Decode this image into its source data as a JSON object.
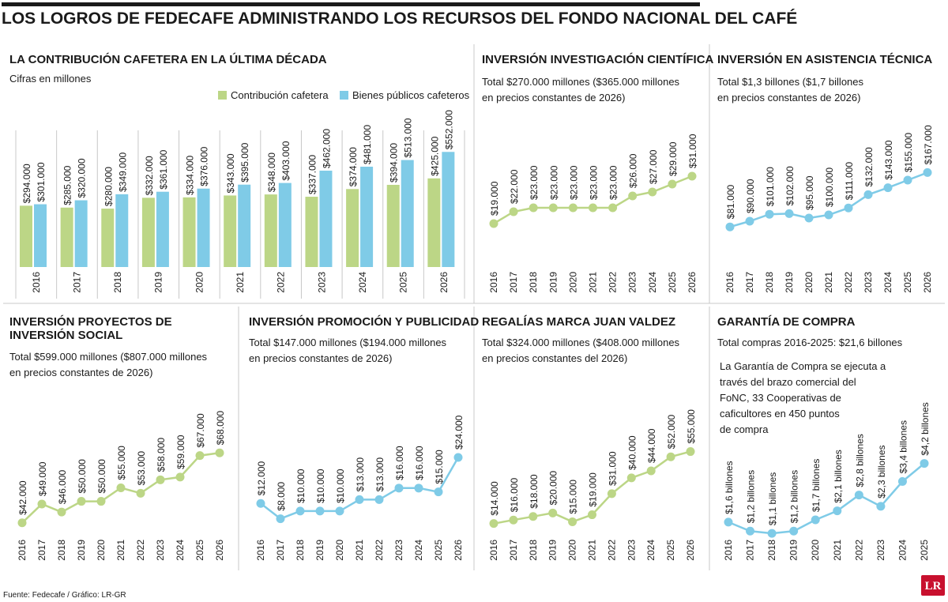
{
  "title": "LOS LOGROS DE FEDECAFE ADMINISTRANDO LOS RECURSOS DEL FONDO NACIONAL DEL CAFÉ",
  "footer": "Fuente: Fedecafe / Gráfico: LR-GR",
  "logo": "LR",
  "colors": {
    "green": "#bcd686",
    "blue": "#7fcbe7",
    "dark": "#1a1a1a",
    "rule": "#c8c8c8",
    "logo": "#c8102e"
  },
  "chart_data": [
    {
      "id": "contribucion",
      "type": "bar",
      "title": "LA CONTRIBUCIÓN CAFETERA EN LA ÚLTIMA DÉCADA",
      "subtitle": "Cifras en millones",
      "categories": [
        "2016",
        "2017",
        "2018",
        "2019",
        "2020",
        "2021",
        "2022",
        "2023",
        "2024",
        "2025",
        "2026"
      ],
      "series": [
        {
          "name": "Contribución cafetera",
          "color": "#bcd686",
          "values": [
            294000,
            285000,
            280000,
            332000,
            334000,
            343000,
            348000,
            337000,
            374000,
            394000,
            425000
          ],
          "labels": [
            "$294.000",
            "$285.000",
            "$280.000",
            "$332.000",
            "$334.000",
            "$343.000",
            "$348.000",
            "$337.000",
            "$374.000",
            "$394.000",
            "$425.000"
          ]
        },
        {
          "name": "Bienes públicos cafeteros",
          "color": "#7fcbe7",
          "values": [
            301000,
            320000,
            349000,
            361000,
            376000,
            395000,
            403000,
            462000,
            481000,
            513000,
            552000
          ],
          "labels": [
            "$301.000",
            "$320.000",
            "$349.000",
            "$361.000",
            "$376.000",
            "$395.000",
            "$403.000",
            "$462.000",
            "$481.000",
            "$513.000",
            "$552.000"
          ]
        }
      ],
      "ylim": [
        0,
        750000
      ]
    },
    {
      "id": "investigacion",
      "type": "line",
      "title": "INVERSIÓN INVESTIGACIÓN CIENTÍFICA",
      "subtitle": [
        "Total $270.000 millones ($365.000 millones",
        "en precios constantes de 2026)"
      ],
      "x": [
        "2016",
        "2017",
        "2018",
        "2019",
        "2020",
        "2021",
        "2022",
        "2023",
        "2024",
        "2025",
        "2026"
      ],
      "values": [
        19000,
        22000,
        23000,
        23000,
        23000,
        23000,
        23000,
        26000,
        27000,
        29000,
        31000
      ],
      "labels": [
        "$19.000",
        "$22.000",
        "$23.000",
        "$23.000",
        "$23.000",
        "$23.000",
        "$23.000",
        "$26.000",
        "$27.000",
        "$29.000",
        "$31.000"
      ],
      "color": "#bcd686",
      "ylim": [
        14000,
        46000
      ]
    },
    {
      "id": "asistencia",
      "type": "line",
      "title": "INVERSIÓN EN ASISTENCIA TÉCNICA",
      "subtitle": [
        "Total $1,3 billones ($1,7 billones",
        "en precios constantes de 2026)"
      ],
      "x": [
        "2016",
        "2017",
        "2018",
        "2019",
        "2020",
        "2021",
        "2022",
        "2023",
        "2024",
        "2025",
        "2026"
      ],
      "values": [
        81000,
        90000,
        101000,
        102000,
        95000,
        100000,
        111000,
        132000,
        143000,
        155000,
        167000
      ],
      "labels": [
        "$81.000",
        "$90.000",
        "$101.000",
        "$102.000",
        "$95.000",
        "$100.000",
        "$111.000",
        "$132.000",
        "$143.000",
        "$155.000",
        "$167.000"
      ],
      "color": "#7fcbe7",
      "ylim": [
        55000,
        255000
      ]
    },
    {
      "id": "social",
      "type": "line",
      "title": [
        "INVERSIÓN PROYECTOS DE",
        "INVERSIÓN SOCIAL"
      ],
      "subtitle": [
        "Total $599.000 millones ($807.000 millones",
        "en precios constantes de 2026)"
      ],
      "x": [
        "2016",
        "2017",
        "2018",
        "2019",
        "2020",
        "2021",
        "2022",
        "2023",
        "2024",
        "2025",
        "2026"
      ],
      "values": [
        42000,
        49000,
        46000,
        50000,
        50000,
        55000,
        53000,
        58000,
        59000,
        67000,
        68000
      ],
      "labels": [
        "$42.000",
        "$49.000",
        "$46.000",
        "$50.000",
        "$50.000",
        "$55.000",
        "$53.000",
        "$58.000",
        "$59.000",
        "$67.000",
        "$68.000"
      ],
      "color": "#bcd686",
      "ylim": [
        39000,
        86000
      ]
    },
    {
      "id": "promocion",
      "type": "line",
      "title": "INVERSIÓN PROMOCIÓN Y PUBLICIDAD",
      "subtitle": [
        "Total $147.000 millones ($194.000 millones",
        "en precios constantes de 2026)"
      ],
      "x": [
        "2016",
        "2017",
        "2018",
        "2019",
        "2020",
        "2021",
        "2022",
        "2023",
        "2024",
        "2025",
        "2026"
      ],
      "values": [
        12000,
        8000,
        10000,
        10000,
        10000,
        13000,
        13000,
        16000,
        16000,
        15000,
        24000
      ],
      "labels": [
        "$12.000",
        "$8.000",
        "$10.000",
        "$10.000",
        "$10.000",
        "$13.000",
        "$13.000",
        "$16.000",
        "$16.000",
        "$15.000",
        "$24.000"
      ],
      "color": "#7fcbe7",
      "ylim": [
        4000,
        37000
      ]
    },
    {
      "id": "regalias",
      "type": "line",
      "title": "REGALÍAS MARCA JUAN VALDEZ",
      "subtitle": [
        "Total $324.000 millones ($408.000 millones",
        "en precios constantes del 2026)"
      ],
      "x": [
        "2016",
        "2017",
        "2018",
        "2019",
        "2020",
        "2021",
        "2022",
        "2023",
        "2024",
        "2025",
        "2026"
      ],
      "values": [
        14000,
        16000,
        18000,
        20000,
        15000,
        19000,
        31000,
        40000,
        44000,
        52000,
        55000
      ],
      "labels": [
        "$14.000",
        "$16.000",
        "$18.000",
        "$20.000",
        "$15.000",
        "$19.000",
        "$31.000",
        "$40.000",
        "$44.000",
        "$52.000",
        "$55.000"
      ],
      "color": "#bcd686",
      "ylim": [
        8000,
        80000
      ]
    },
    {
      "id": "garantia",
      "type": "line",
      "title": "GARANTÍA DE COMPRA",
      "subtitle": [
        "Total compras 2016-2025: $21,6 billones"
      ],
      "note": [
        "La Garantía de Compra se ejecuta a",
        "través del brazo comercial del",
        "FoNC, 33 Cooperativas de",
        "caficultores en 450 puntos",
        "de compra"
      ],
      "x": [
        "2016",
        "2017",
        "2018",
        "2019",
        "2020",
        "2021",
        "2022",
        "2023",
        "2024",
        "2025"
      ],
      "values": [
        1.6,
        1.2,
        1.1,
        1.2,
        1.7,
        2.1,
        2.8,
        2.3,
        3.4,
        4.2
      ],
      "labels": [
        "$1,6 billones",
        "$1,2 billones",
        "$1,1 billones",
        "$1,2 billones",
        "$1,7 billones",
        "$2,1 billones",
        "$2,8 billones",
        "$2,3 billones",
        "$3,4 billones",
        "$4,2 billones"
      ],
      "color": "#7fcbe7",
      "ylim": [
        1.0,
        6.6
      ]
    }
  ]
}
